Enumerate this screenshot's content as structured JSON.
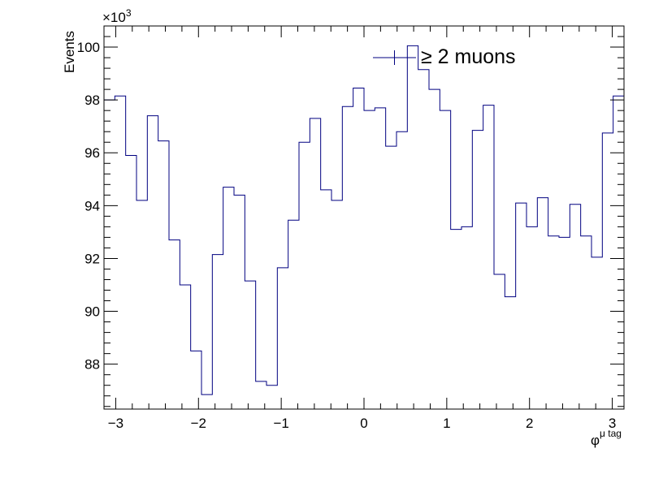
{
  "chart_data": {
    "type": "line",
    "style": "step-histogram",
    "xlabel_main": "φ",
    "xlabel_sup": "μ tag",
    "ylabel": "Events",
    "y_exponent_label": "×10",
    "y_exponent_power": "3",
    "xlim": [
      -3.1416,
      3.1416
    ],
    "ylim": [
      86.3,
      100.8
    ],
    "x_ticks": [
      -3,
      -2,
      -1,
      0,
      1,
      2,
      3
    ],
    "x_tick_labels": [
      "−3",
      "−2",
      "−1",
      "0",
      "1",
      "2",
      "3"
    ],
    "y_ticks": [
      88,
      90,
      92,
      94,
      96,
      98,
      100
    ],
    "y_tick_labels": [
      "88",
      "90",
      "92",
      "94",
      "96",
      "98",
      "100"
    ],
    "line_color": "#000080",
    "series": [
      {
        "name": "≥ 2 muons",
        "values": [
          98.0,
          98.15,
          95.9,
          94.2,
          97.4,
          96.45,
          92.7,
          91.0,
          88.5,
          86.85,
          92.15,
          94.7,
          94.4,
          91.15,
          87.35,
          87.2,
          91.65,
          93.45,
          96.4,
          97.3,
          94.6,
          94.2,
          97.75,
          98.45,
          97.6,
          97.7,
          96.25,
          96.8,
          100.05,
          99.15,
          98.4,
          97.6,
          93.1,
          93.2,
          96.85,
          97.8,
          91.4,
          90.55,
          94.1,
          93.2,
          94.3,
          92.85,
          92.8,
          94.05,
          92.85,
          92.05,
          96.75,
          98.15
        ]
      }
    ]
  }
}
